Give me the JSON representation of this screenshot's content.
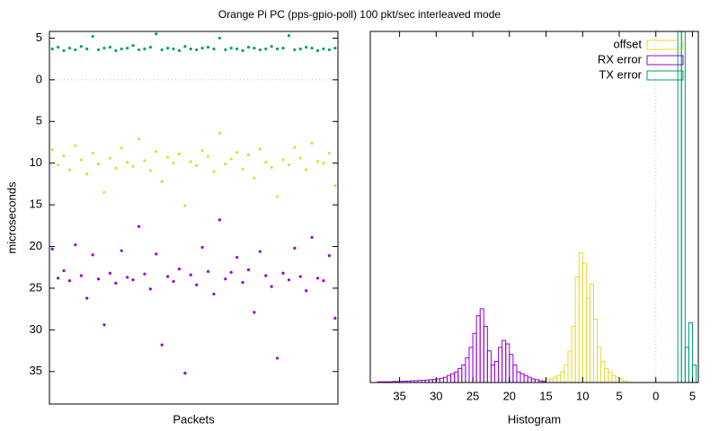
{
  "title": "Orange Pi PC (pps-gpio-poll) 100 pkt/sec interleaved mode",
  "chart_data": [
    {
      "type": "scatter",
      "ylabel": "microseconds",
      "xlabel": "Packets",
      "x": [
        0,
        1,
        2,
        3,
        4,
        5,
        6,
        7,
        8,
        9,
        10,
        11,
        12,
        13,
        14,
        15,
        16,
        17,
        18,
        19,
        20,
        21,
        22,
        23,
        24,
        25,
        26,
        27,
        28,
        29,
        30,
        31,
        32,
        33,
        34,
        35,
        36,
        37,
        38,
        39,
        40,
        41,
        42,
        43,
        44,
        45,
        46,
        47,
        48,
        49
      ],
      "xlim": [
        -0.5,
        49.5
      ],
      "ylim": [
        38.9,
        -5.8
      ],
      "zeroaxis": true,
      "yticks": [
        {
          "value": -5,
          "label": "5"
        },
        0,
        5,
        10,
        15,
        20,
        25,
        30,
        35
      ],
      "series": [
        {
          "color": "#e8d83a",
          "values": [
            8.4,
            10.2,
            9.1,
            10.8,
            7.9,
            9.6,
            11.3,
            8.8,
            10.1,
            13.5,
            9.4,
            10.6,
            8.2,
            9.9,
            10.4,
            7.1,
            9.7,
            10.9,
            8.6,
            12.2,
            9.3,
            10.0,
            8.9,
            15.1,
            9.8,
            10.3,
            8.5,
            9.2,
            11.0,
            6.4,
            10.1,
            9.5,
            8.7,
            10.7,
            9.0,
            11.8,
            8.3,
            9.9,
            10.5,
            14.0,
            9.6,
            10.2,
            8.1,
            9.4,
            10.8,
            7.6,
            9.8,
            10.0,
            8.8,
            12.7
          ]
        },
        {
          "color": "#9400d3",
          "values": [
            20.3,
            23.8,
            22.9,
            24.1,
            19.8,
            23.5,
            26.2,
            21.0,
            23.9,
            29.4,
            23.2,
            24.4,
            20.5,
            23.7,
            24.0,
            17.6,
            23.3,
            25.1,
            20.9,
            31.8,
            23.6,
            24.2,
            22.7,
            35.2,
            23.4,
            24.6,
            20.1,
            23.0,
            25.7,
            16.8,
            23.9,
            23.1,
            21.3,
            24.3,
            22.8,
            27.9,
            20.6,
            23.5,
            24.8,
            33.4,
            23.2,
            24.0,
            20.2,
            23.6,
            25.3,
            18.9,
            23.8,
            24.1,
            21.1,
            28.6
          ]
        },
        {
          "color": "#009e73",
          "values": [
            -3.7,
            -3.9,
            -3.5,
            -3.8,
            -3.6,
            -4.0,
            -3.7,
            -5.2,
            -3.6,
            -3.8,
            -3.9,
            -3.5,
            -3.7,
            -3.8,
            -4.1,
            -3.6,
            -3.7,
            -3.9,
            -5.5,
            -3.6,
            -3.8,
            -3.7,
            -3.5,
            -4.0,
            -3.7,
            -3.6,
            -3.8,
            -3.9,
            -3.7,
            -5.0,
            -3.6,
            -3.8,
            -3.7,
            -3.5,
            -3.9,
            -3.8,
            -3.6,
            -3.7,
            -4.0,
            -3.7,
            -3.8,
            -5.3,
            -3.6,
            -3.7,
            -3.9,
            -3.8,
            -3.5,
            -3.7,
            -3.6,
            -3.8
          ]
        }
      ]
    },
    {
      "type": "histogram",
      "xlabel": "Histogram",
      "xlim": [
        39,
        -5.8
      ],
      "ylim": [
        0,
        100
      ],
      "zeroaxis": true,
      "legend": "top right",
      "xticks": [
        35,
        30,
        25,
        20,
        15,
        10,
        5,
        0,
        {
          "value": -5,
          "label": "5"
        }
      ],
      "series": [
        {
          "name": "offset",
          "color": "#e8d83a",
          "bins": [
            4,
            4.5,
            5,
            5.5,
            6,
            6.5,
            7,
            7.5,
            8,
            8.5,
            9,
            9.5,
            10,
            10.5,
            11,
            11.5,
            12,
            12.5,
            13,
            13.5,
            14,
            14.5,
            15,
            15.5,
            16
          ],
          "values": [
            0.5,
            1,
            1.5,
            2,
            3,
            4,
            6,
            10,
            18,
            28,
            24,
            34,
            37,
            30,
            16,
            9,
            5,
            3,
            2,
            1.5,
            1,
            0.8,
            0.5,
            0.3
          ]
        },
        {
          "name": "RX error",
          "color": "#9400d3",
          "bins": [
            15,
            15.5,
            16,
            16.5,
            17,
            17.5,
            18,
            18.5,
            19,
            19.5,
            20,
            20.5,
            21,
            21.5,
            22,
            22.5,
            23,
            23.5,
            24,
            24.5,
            25,
            25.5,
            26,
            26.5,
            27,
            27.5,
            28,
            28.5,
            29,
            29.5,
            30,
            30.5,
            31,
            31.5,
            32,
            32.5,
            33,
            33.5,
            34,
            34.5,
            35,
            35.5,
            36,
            36.5,
            37,
            37.5,
            38
          ],
          "values": [
            0.3,
            0.5,
            0.8,
            1,
            1.5,
            2,
            2.5,
            3,
            5,
            8,
            11,
            12,
            10,
            6,
            5,
            9,
            16,
            21,
            19,
            14,
            10,
            7,
            5,
            4,
            3,
            2.5,
            2,
            1.5,
            1.2,
            1,
            0.9,
            0.8,
            0.7,
            0.6,
            0.6,
            0.5,
            0.5,
            0.4,
            0.4,
            0.3,
            0.3,
            0.3,
            0.2,
            0.2,
            0.2,
            0.2
          ]
        },
        {
          "name": "TX error",
          "color": "#009e73",
          "bins": [
            -5.5,
            -5,
            -4.5,
            -4,
            -3.5,
            -3
          ],
          "values": [
            5,
            17,
            10,
            100,
            100
          ]
        }
      ]
    }
  ]
}
